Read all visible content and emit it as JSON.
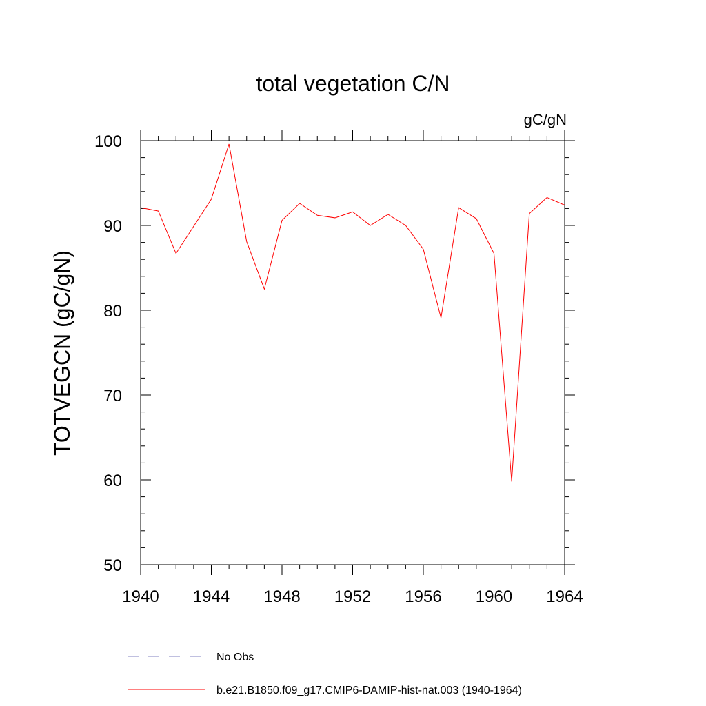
{
  "chart_data": {
    "type": "line",
    "title": "total vegetation C/N",
    "units_label": "gC/gN",
    "xlabel": "",
    "ylabel": "TOTVEGCN  (gC/gN)",
    "xlim": [
      1940,
      1964
    ],
    "ylim": [
      50,
      100
    ],
    "x_ticks": [
      1940,
      1944,
      1948,
      1952,
      1956,
      1960,
      1964
    ],
    "y_ticks": [
      50,
      60,
      70,
      80,
      90,
      100
    ],
    "grid": false,
    "legend_position": "bottom",
    "series": [
      {
        "name": "No Obs",
        "color": "#8080c0",
        "dash": true,
        "x": [],
        "y": []
      },
      {
        "name": "b.e21.B1850.f09_g17.CMIP6-DAMIP-hist-nat.003 (1940-1964)",
        "color": "#ff0000",
        "dash": false,
        "x": [
          1940,
          1941,
          1942,
          1943,
          1944,
          1945,
          1946,
          1947,
          1948,
          1949,
          1950,
          1951,
          1952,
          1953,
          1954,
          1955,
          1956,
          1957,
          1958,
          1959,
          1960,
          1961,
          1962,
          1963,
          1964
        ],
        "y": [
          92.1,
          91.7,
          86.7,
          89.9,
          93.1,
          99.6,
          88.1,
          82.5,
          90.6,
          92.6,
          91.2,
          90.9,
          91.6,
          90.0,
          91.3,
          90.0,
          87.2,
          79.1,
          92.1,
          90.8,
          86.7,
          59.8,
          91.4,
          93.3,
          92.4
        ]
      }
    ]
  }
}
